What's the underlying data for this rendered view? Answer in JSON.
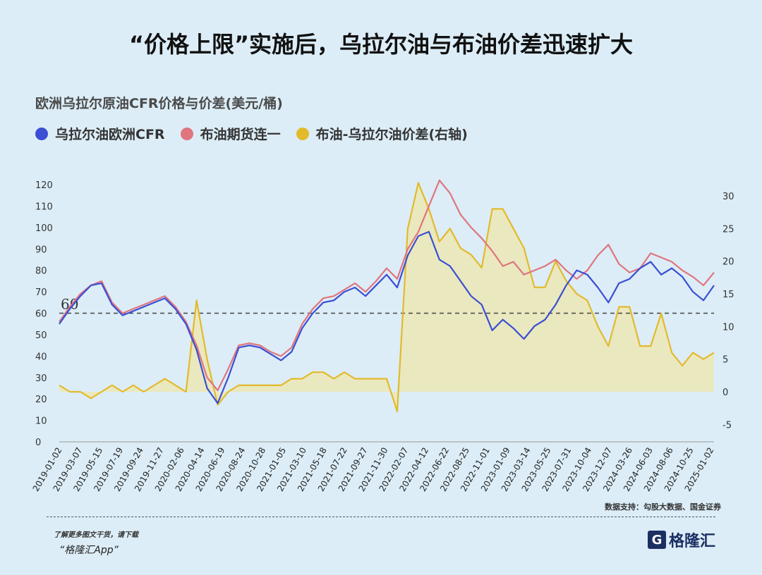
{
  "header": {
    "title": "“价格上限”实施后，乌拉尔油与布油价差迅速扩大"
  },
  "footer": {
    "source": "数据支持：勾股大数据、国金证券",
    "promo": "了解更多图文干货，请下载",
    "app": "“格隆汇App”",
    "logo_text": "格隆汇"
  },
  "colors": {
    "urals": "#3b4fd4",
    "brent": "#e0757e",
    "spread": "#e3ba2c",
    "spread_fill": "#ece6b4",
    "background": "#dcedf7"
  },
  "chart_data": {
    "type": "line",
    "title": "欧洲乌拉尔原油CFR价格与价差(美元/桶)",
    "reference_line": {
      "axis": "left",
      "value": 60,
      "label": "60",
      "style": "dashed"
    },
    "left_axis": {
      "range": [
        0,
        125
      ],
      "ticks": [
        "0",
        "10",
        "20",
        "30",
        "40",
        "50",
        "60",
        "70",
        "80",
        "90",
        "100",
        "110",
        "120"
      ]
    },
    "right_axis": {
      "range": [
        -8,
        33
      ],
      "ticks": [
        "-5",
        "0",
        "5",
        "10",
        "15",
        "20",
        "25",
        "30"
      ]
    },
    "x_tick_labels": [
      "2019-01-02",
      "2019-03-07",
      "2019-05-15",
      "2019-07-19",
      "2019-09-24",
      "2019-11-27",
      "2020-02-06",
      "2020-04-14",
      "2020-06-19",
      "2020-08-24",
      "2020-10-28",
      "2021-01-05",
      "2021-03-10",
      "2021-05-18",
      "2021-07-22",
      "2021-09-27",
      "2021-11-30",
      "2022-02-07",
      "2022-04-12",
      "2022-06-22",
      "2022-08-25",
      "2022-11-01",
      "2023-01-09",
      "2023-03-14",
      "2023-05-25",
      "2023-07-31",
      "2023-10-04",
      "2023-12-07",
      "2024-03-26",
      "2024-06-03",
      "2024-08-06",
      "2024-10-25",
      "2025-01-02"
    ],
    "series": [
      {
        "name": "乌拉尔油欧洲CFR",
        "axis": "left",
        "values": [
          55,
          62,
          68,
          73,
          74,
          64,
          59,
          61,
          63,
          65,
          67,
          62,
          55,
          43,
          25,
          18,
          30,
          44,
          45,
          44,
          41,
          38,
          42,
          53,
          60,
          65,
          66,
          70,
          72,
          68,
          73,
          78,
          72,
          87,
          96,
          98,
          85,
          82,
          75,
          68,
          64,
          52,
          57,
          53,
          48,
          54,
          57,
          64,
          73,
          80,
          78,
          72,
          65,
          74,
          76,
          81,
          84,
          78,
          81,
          77,
          70,
          66,
          73
        ]
      },
      {
        "name": "布油期货连一",
        "axis": "left",
        "values": [
          56,
          63,
          69,
          73,
          75,
          65,
          60,
          62,
          64,
          66,
          68,
          63,
          56,
          45,
          30,
          24,
          34,
          45,
          46,
          45,
          42,
          40,
          44,
          55,
          62,
          67,
          68,
          71,
          74,
          70,
          75,
          81,
          76,
          90,
          98,
          110,
          122,
          116,
          106,
          100,
          95,
          89,
          82,
          84,
          78,
          80,
          82,
          85,
          80,
          76,
          80,
          87,
          92,
          83,
          79,
          81,
          88,
          86,
          84,
          80,
          77,
          73,
          79
        ]
      },
      {
        "name": "布油-乌拉尔油价差(右轴)",
        "axis": "right",
        "fill_to_zero": true,
        "values": [
          1,
          0,
          0,
          -1,
          0,
          1,
          0,
          1,
          0,
          1,
          2,
          1,
          0,
          14,
          5,
          -2,
          0,
          1,
          1,
          1,
          1,
          1,
          2,
          2,
          3,
          3,
          2,
          3,
          2,
          2,
          2,
          2,
          -3,
          25,
          32,
          28,
          23,
          25,
          22,
          21,
          19,
          28,
          28,
          25,
          22,
          16,
          16,
          20,
          17,
          15,
          14,
          10,
          7,
          13,
          13,
          7,
          7,
          12,
          6,
          4,
          6,
          5,
          6
        ]
      }
    ]
  }
}
